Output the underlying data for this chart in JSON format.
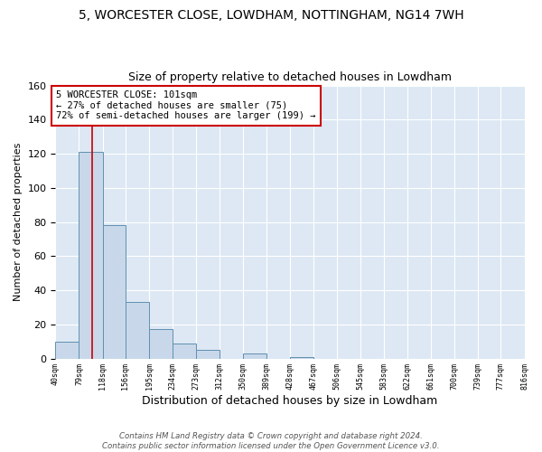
{
  "title": "5, WORCESTER CLOSE, LOWDHAM, NOTTINGHAM, NG14 7WH",
  "subtitle": "Size of property relative to detached houses in Lowdham",
  "xlabel": "Distribution of detached houses by size in Lowdham",
  "ylabel": "Number of detached properties",
  "bar_color": "#c8d8ea",
  "bar_edge_color": "#6090b0",
  "background_color": "#dde8f4",
  "grid_color": "white",
  "bin_edges": [
    40,
    79,
    118,
    156,
    195,
    234,
    273,
    312,
    350,
    389,
    428,
    467,
    506,
    545,
    583,
    622,
    661,
    700,
    739,
    777,
    816
  ],
  "bin_labels": [
    "40sqm",
    "79sqm",
    "118sqm",
    "156sqm",
    "195sqm",
    "234sqm",
    "273sqm",
    "312sqm",
    "350sqm",
    "389sqm",
    "428sqm",
    "467sqm",
    "506sqm",
    "545sqm",
    "583sqm",
    "622sqm",
    "661sqm",
    "700sqm",
    "739sqm",
    "777sqm",
    "816sqm"
  ],
  "counts": [
    10,
    121,
    78,
    33,
    17,
    9,
    5,
    0,
    3,
    0,
    1,
    0,
    0,
    0,
    0,
    0,
    0,
    0,
    0,
    0
  ],
  "ylim": [
    0,
    160
  ],
  "yticks": [
    0,
    20,
    40,
    60,
    80,
    100,
    120,
    140,
    160
  ],
  "property_value": 101,
  "property_line_color": "#cc0000",
  "annotation_text": "5 WORCESTER CLOSE: 101sqm\n← 27% of detached houses are smaller (75)\n72% of semi-detached houses are larger (199) →",
  "annotation_box_color": "white",
  "annotation_box_edge": "#cc0000",
  "footer_text": "Contains HM Land Registry data © Crown copyright and database right 2024.\nContains public sector information licensed under the Open Government Licence v3.0.",
  "title_fontsize": 10,
  "subtitle_fontsize": 9,
  "ylabel_fontsize": 8,
  "xlabel_fontsize": 9
}
